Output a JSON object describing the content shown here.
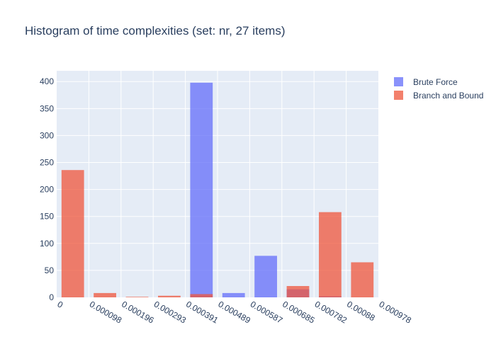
{
  "chart_data": {
    "type": "bar",
    "title": "Histogram of time complexities (set: nr, 27 items)",
    "xlabel": "",
    "ylabel": "",
    "barmode": "overlay",
    "x_tick_labels": [
      "0",
      "0.000098",
      "0.000196",
      "0.000293",
      "0.000391",
      "0.000489",
      "0.000587",
      "0.000685",
      "0.000782",
      "0.00088",
      "0.000978"
    ],
    "bin_edges": [
      0,
      9.78e-05,
      0.0001956,
      0.0002934,
      0.0003912,
      0.000489,
      0.0005868,
      0.0006846,
      0.0007824,
      0.0008802,
      0.000978
    ],
    "ylim": [
      0,
      420
    ],
    "y_ticks": [
      0,
      50,
      100,
      150,
      200,
      250,
      300,
      350,
      400
    ],
    "grid": true,
    "legend_position": "top-right",
    "series": [
      {
        "name": "Brute Force",
        "color": "#636efa",
        "values": [
          0,
          0,
          0,
          0,
          398,
          8,
          77,
          15,
          2,
          0
        ]
      },
      {
        "name": "Branch and Bound",
        "color": "#ef553b",
        "values": [
          236,
          8,
          1,
          3,
          6,
          0,
          0,
          21,
          158,
          65
        ]
      }
    ]
  },
  "colors": {
    "plot_background": "#e5ecf6",
    "gridline": "#ffffff",
    "text": "#2a3f5f"
  }
}
